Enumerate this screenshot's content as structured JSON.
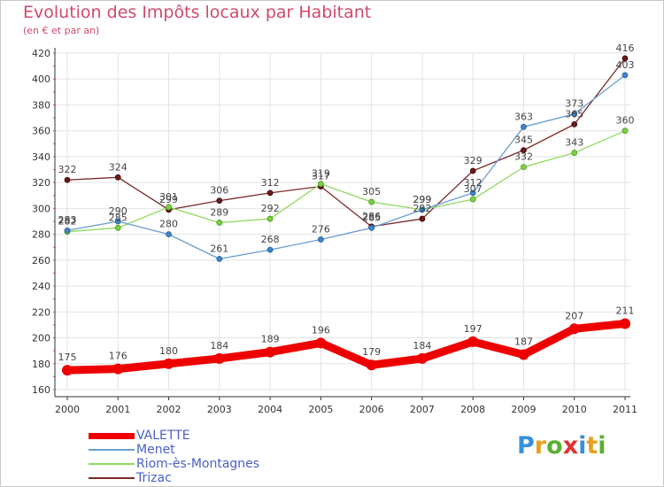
{
  "header": {
    "title": "Evolution des Impôts locaux par Habitant",
    "subtitle": "(en € et par an)"
  },
  "logo": {
    "text": "Proxiti",
    "letter_colors": [
      "#3a8fd9",
      "#e8a020",
      "#5ab030",
      "#e03030",
      "#3a8fd9",
      "#e8a020",
      "#5ab030"
    ]
  },
  "chart_data": {
    "type": "line",
    "title": "Evolution des Impôts locaux par Habitant",
    "subtitle": "(en € et par an)",
    "xlabel": "",
    "ylabel": "",
    "x": [
      "2000",
      "2001",
      "2002",
      "2003",
      "2004",
      "2005",
      "2006",
      "2007",
      "2008",
      "2009",
      "2010",
      "2011"
    ],
    "ylim": [
      160,
      420
    ],
    "yticks": [
      160,
      180,
      200,
      220,
      240,
      260,
      280,
      300,
      320,
      340,
      360,
      380,
      400,
      420
    ],
    "grid": "horizontal",
    "legend_position": "bottom-left",
    "series": [
      {
        "name": "VALETTE",
        "color": "#ee0000",
        "values": [
          175,
          176,
          180,
          184,
          189,
          196,
          179,
          184,
          197,
          187,
          207,
          211
        ]
      },
      {
        "name": "Menet",
        "color": "#6a9fd0",
        "values": [
          283,
          290,
          280,
          261,
          268,
          276,
          285,
          299,
          312,
          363,
          373,
          403
        ]
      },
      {
        "name": "Riom-ès-Montagnes",
        "color": "#90d860",
        "values": [
          282,
          285,
          301,
          289,
          292,
          319,
          305,
          299,
          307,
          332,
          343,
          360
        ]
      },
      {
        "name": "Trizac",
        "color": "#7a2a2a",
        "values": [
          322,
          324,
          299,
          306,
          312,
          317,
          286,
          292,
          329,
          345,
          365,
          416
        ]
      }
    ]
  }
}
